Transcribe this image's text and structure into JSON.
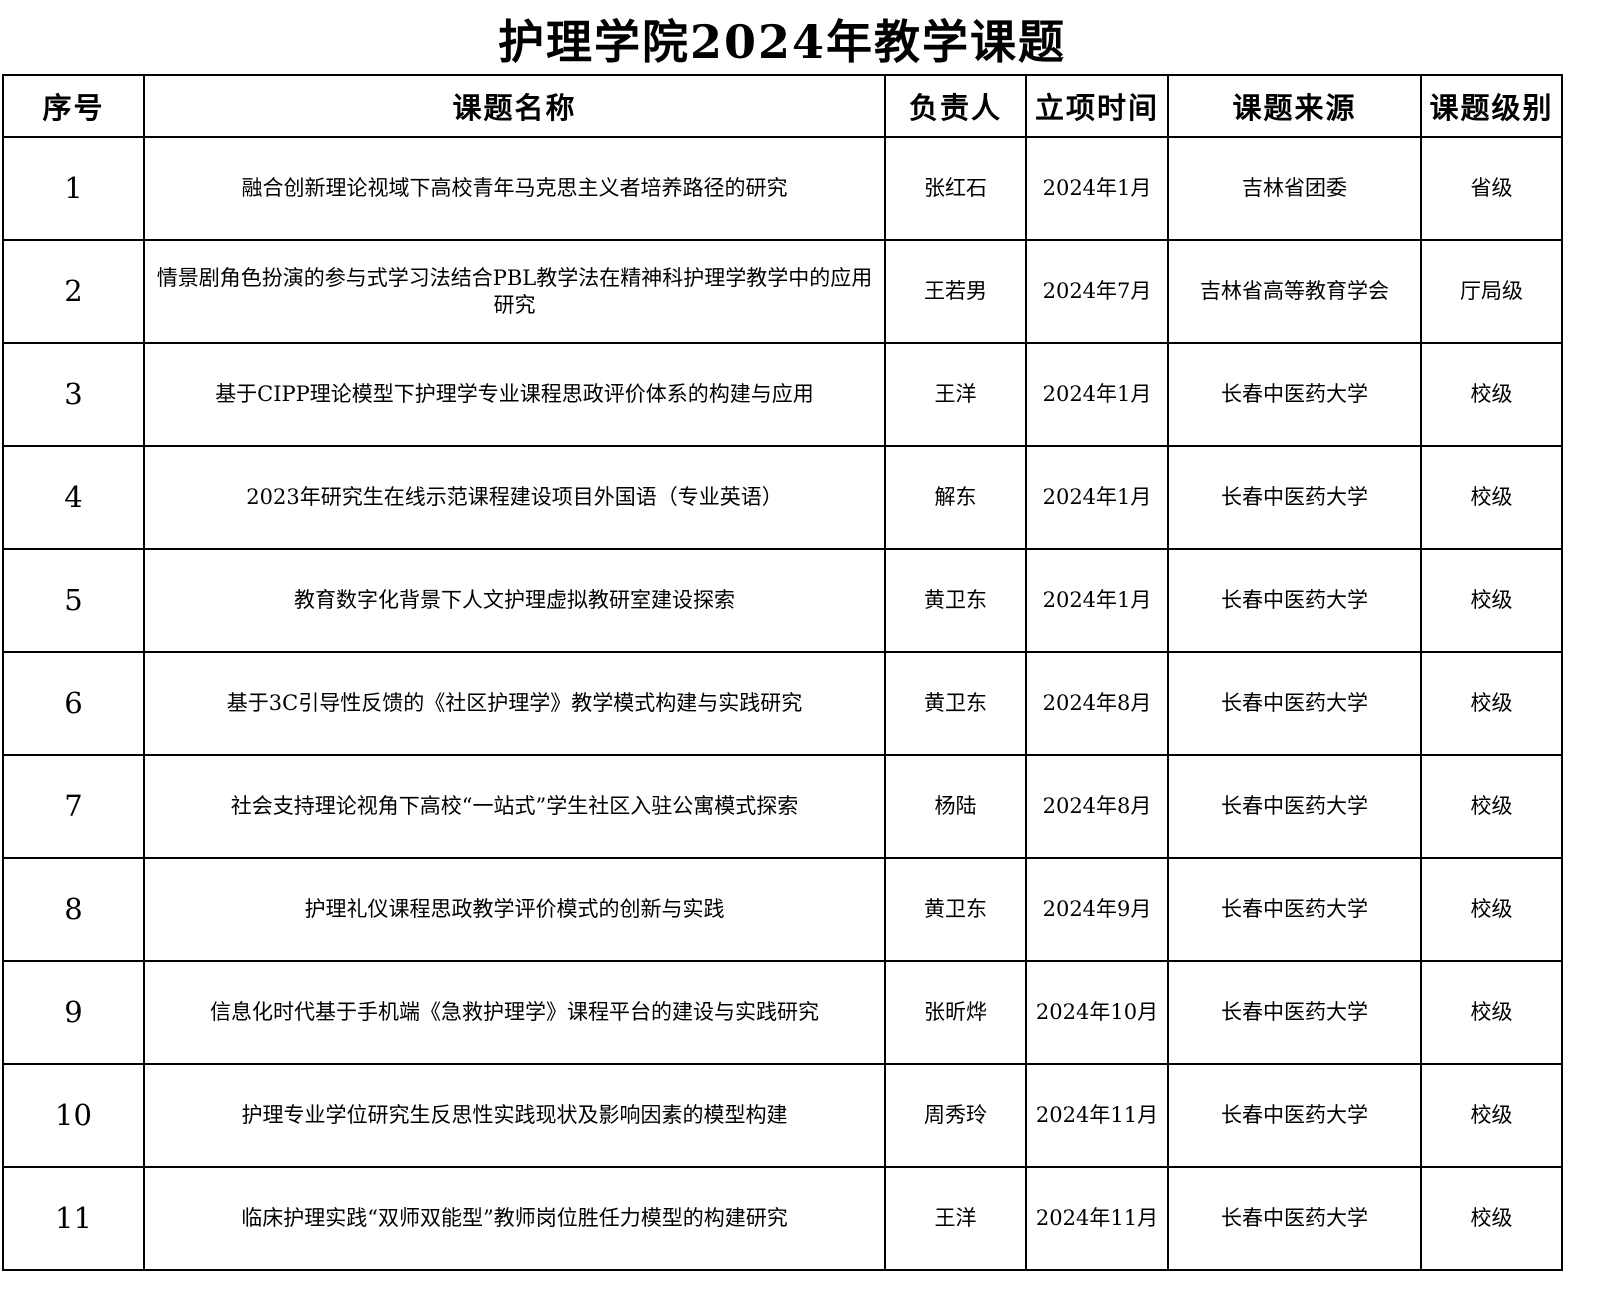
{
  "title": "护理学院2024年教学课题",
  "headers": [
    "序号",
    "课题名称",
    "负责人",
    "立项时间",
    "课题来源",
    "课题级别"
  ],
  "rows": [
    [
      "1",
      "融合创新理论视域下高校青年马克思主义者培养路径的研究",
      "张红石",
      "2024年1月",
      "吉林省团委",
      "省级"
    ],
    [
      "2",
      "情景剧角色扮演的参与式学习法结合PBL教学法在精神科护理学教学中的应用研究",
      "王若男",
      "2024年7月",
      "吉林省高等教育学会",
      "厅局级"
    ],
    [
      "3",
      "基于CIPP理论模型下护理学专业课程思政评价体系的构建与应用",
      "王洋",
      "2024年1月",
      "长春中医药大学",
      "校级"
    ],
    [
      "4",
      "2023年研究生在线示范课程建设项目外国语（专业英语）",
      "解东",
      "2024年1月",
      "长春中医药大学",
      "校级"
    ],
    [
      "5",
      "教育数字化背景下人文护理虚拟教研室建设探索",
      "黄卫东",
      "2024年1月",
      "长春中医药大学",
      "校级"
    ],
    [
      "6",
      "基于3C引导性反馈的《社区护理学》教学模式构建与实践研究",
      "黄卫东",
      "2024年8月",
      "长春中医药大学",
      "校级"
    ],
    [
      "7",
      "社会支持理论视角下高校“一站式”学生社区入驻公寓模式探索",
      "杨陆",
      "2024年8月",
      "长春中医药大学",
      "校级"
    ],
    [
      "8",
      "护理礼仪课程思政教学评价模式的创新与实践",
      "黄卫东",
      "2024年9月",
      "长春中医药大学",
      "校级"
    ],
    [
      "9",
      "信息化时代基于手机端《急救护理学》课程平台的建设与实践研究",
      "张昕烨",
      "2024年10月",
      "长春中医药大学",
      "校级"
    ],
    [
      "10",
      "护理专业学位研究生反思性实践现状及影响因素的模型构建",
      "周秀玲",
      "2024年11月",
      "长春中医药大学",
      "校级"
    ],
    [
      "11",
      "临床护理实践“双师双能型”教师岗位胜任力模型的构建研究",
      "王洋",
      "2024年11月",
      "长春中医药大学",
      "校级"
    ]
  ]
}
